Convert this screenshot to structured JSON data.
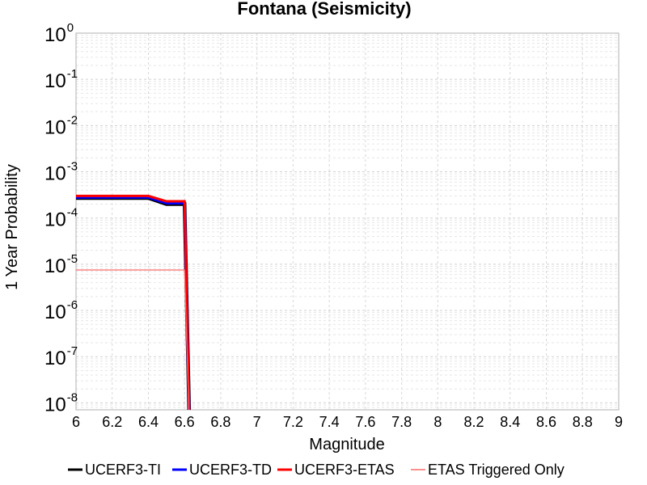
{
  "chart_data": {
    "type": "line",
    "title": "Fontana (Seismicity)",
    "xlabel": "Magnitude",
    "ylabel": "1 Year Probability",
    "xlim": [
      6,
      9
    ],
    "ylim_log10": [
      -8.15,
      0
    ],
    "y_scale": "log",
    "x_ticks": [
      "6",
      "6.2",
      "6.4",
      "6.6",
      "6.8",
      "7",
      "7.2",
      "7.4",
      "7.6",
      "7.8",
      "8",
      "8.2",
      "8.4",
      "8.6",
      "8.8",
      "9"
    ],
    "y_ticks": [
      {
        "base": "10",
        "exp": "0"
      },
      {
        "base": "10",
        "exp": "-1"
      },
      {
        "base": "10",
        "exp": "-2"
      },
      {
        "base": "10",
        "exp": "-3"
      },
      {
        "base": "10",
        "exp": "-4"
      },
      {
        "base": "10",
        "exp": "-5"
      },
      {
        "base": "10",
        "exp": "-6"
      },
      {
        "base": "10",
        "exp": "-7"
      },
      {
        "base": "10",
        "exp": "-8"
      }
    ],
    "grid": true,
    "legend_position": "bottom",
    "series": [
      {
        "name": "UCERF3-TI",
        "color": "#000000",
        "points": [
          [
            6.0,
            0.00027
          ],
          [
            6.1,
            0.00027
          ],
          [
            6.2,
            0.00027
          ],
          [
            6.3,
            0.00027
          ],
          [
            6.4,
            0.00027
          ],
          [
            6.5,
            0.0002
          ],
          [
            6.6,
            0.0002
          ],
          [
            6.63,
            1e-09
          ]
        ]
      },
      {
        "name": "UCERF3-TD",
        "color": "#0000ff",
        "points": [
          [
            6.0,
            0.00028
          ],
          [
            6.1,
            0.00028
          ],
          [
            6.2,
            0.00028
          ],
          [
            6.3,
            0.00028
          ],
          [
            6.4,
            0.00028
          ],
          [
            6.5,
            0.00021
          ],
          [
            6.6,
            0.00021
          ],
          [
            6.63,
            1e-09
          ]
        ]
      },
      {
        "name": "UCERF3-ETAS",
        "color": "#ff0000",
        "points": [
          [
            6.0,
            0.0003
          ],
          [
            6.1,
            0.0003
          ],
          [
            6.2,
            0.0003
          ],
          [
            6.3,
            0.0003
          ],
          [
            6.4,
            0.0003
          ],
          [
            6.5,
            0.00023
          ],
          [
            6.6,
            0.00023
          ],
          [
            6.63,
            1e-09
          ]
        ]
      },
      {
        "name": "ETAS Triggered Only",
        "color": "#ff6b6b",
        "points": [
          [
            6.0,
            7.5e-06
          ],
          [
            6.1,
            7.5e-06
          ],
          [
            6.2,
            7.5e-06
          ],
          [
            6.3,
            7.5e-06
          ],
          [
            6.4,
            7.5e-06
          ],
          [
            6.5,
            7.5e-06
          ],
          [
            6.6,
            7.5e-06
          ],
          [
            6.63,
            1e-09
          ]
        ]
      }
    ]
  }
}
